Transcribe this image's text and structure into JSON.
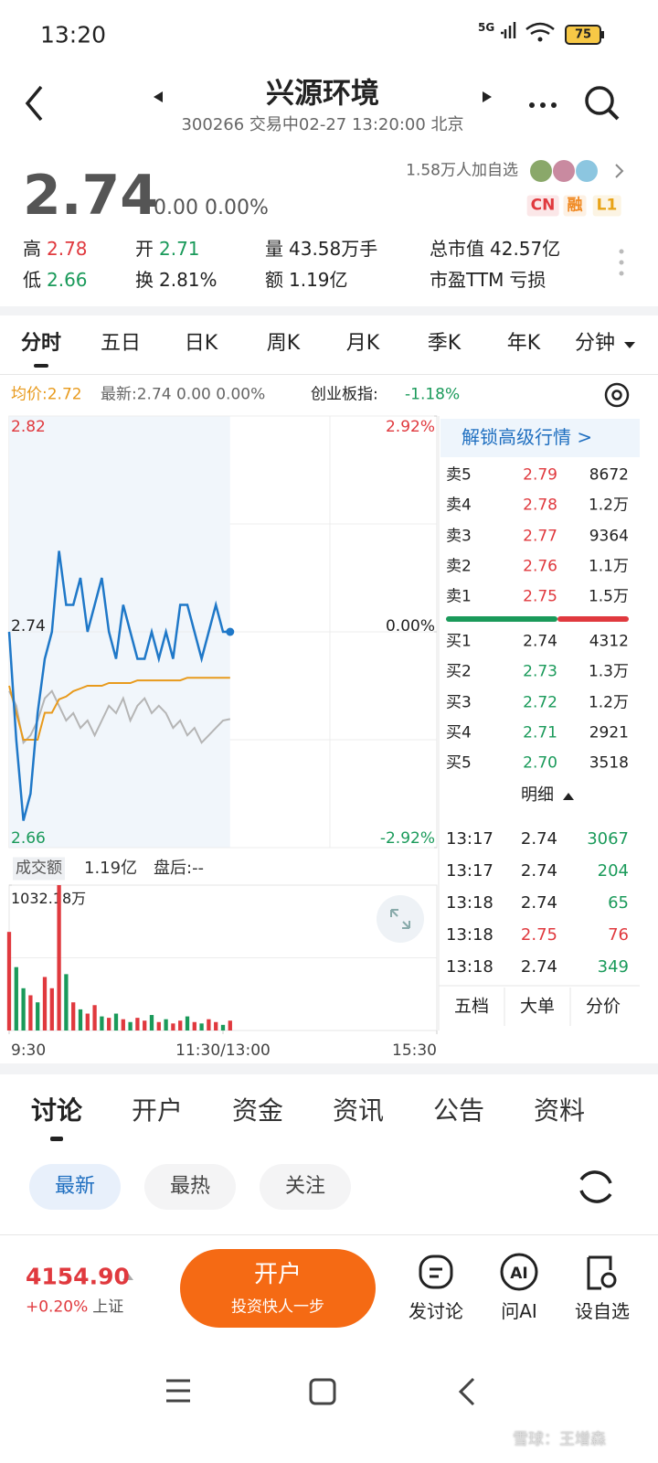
{
  "status_bar": {
    "time": "13:20",
    "network": "5G",
    "battery": "75"
  },
  "header": {
    "title": "兴源环境",
    "subtitle": "300266 交易中02-27 13:20:00 北京"
  },
  "quote": {
    "price": "2.74",
    "change": "0.00 0.00%",
    "followers": "1.58万人加自选",
    "badges": [
      {
        "text": "CN",
        "color": "#e0393e"
      },
      {
        "text": "融",
        "color": "#f08a24"
      },
      {
        "text": "L1",
        "color": "#e8a317"
      }
    ],
    "stats": [
      {
        "label": "高",
        "value": "2.78",
        "color": "#e0393e"
      },
      {
        "label": "开",
        "value": "2.71",
        "color": "#1a9a5a"
      },
      {
        "label": "量",
        "value": "43.58万手",
        "color": "#222"
      },
      {
        "label": "总市值",
        "value": "42.57亿",
        "color": "#222"
      },
      {
        "label": "低",
        "value": "2.66",
        "color": "#1a9a5a"
      },
      {
        "label": "换",
        "value": "2.81%",
        "color": "#222"
      },
      {
        "label": "额",
        "value": "1.19亿",
        "color": "#222"
      },
      {
        "label": "市盈TTM",
        "value": "亏损",
        "color": "#222"
      }
    ]
  },
  "chart_tabs": [
    "分时",
    "五日",
    "日K",
    "周K",
    "月K",
    "季K",
    "年K",
    "分钟"
  ],
  "chart_info": {
    "avg": "均价:2.72",
    "latest": "最新:2.74  0.00  0.00%",
    "index_label": "创业板指:",
    "index_change": "-1.18%"
  },
  "chart_data": [
    {
      "type": "line",
      "x": [
        0,
        4,
        8,
        12,
        16,
        20,
        24,
        28,
        32,
        36,
        40,
        44,
        48,
        52,
        56,
        60,
        64,
        68,
        72,
        76,
        80,
        84,
        88,
        92,
        96,
        100,
        104,
        108,
        112,
        116,
        120,
        124
      ],
      "xlim": [
        0,
        240
      ],
      "xticks": [
        {
          "value": 0,
          "label": "9:30"
        },
        {
          "value": 120,
          "label": "11:30/13:00"
        },
        {
          "value": 240,
          "label": "15:30"
        }
      ],
      "ylim": [
        2.66,
        2.82
      ],
      "yticks": [
        2.66,
        2.74,
        2.82
      ],
      "y2lim": [
        -2.92,
        2.92
      ],
      "y2ticks": [
        {
          "value": -2.92,
          "label": "-2.92%"
        },
        {
          "value": 0,
          "label": "0.00%"
        },
        {
          "value": 2.92,
          "label": "2.92%"
        }
      ],
      "series": [
        {
          "color": "#e89a1c",
          "values": [
            2.72,
            2.71,
            2.7,
            2.7,
            2.7,
            2.71,
            2.71,
            2.715,
            2.716,
            2.718,
            2.719,
            2.72,
            2.72,
            2.72,
            2.721,
            2.721,
            2.721,
            2.721,
            2.722,
            2.722,
            2.722,
            2.722,
            2.722,
            2.722,
            2.722,
            2.723,
            2.723,
            2.723,
            2.723,
            2.723,
            2.723,
            2.723
          ]
        },
        {
          "color": "#1f78c8",
          "values": [
            2.74,
            2.7,
            2.67,
            2.68,
            2.71,
            2.73,
            2.74,
            2.77,
            2.75,
            2.75,
            2.76,
            2.74,
            2.75,
            2.76,
            2.74,
            2.73,
            2.75,
            2.74,
            2.73,
            2.73,
            2.74,
            2.73,
            2.74,
            2.73,
            2.75,
            2.75,
            2.74,
            2.73,
            2.74,
            2.75,
            2.74,
            2.74
          ]
        },
        {
          "color": "#b5b5b5",
          "axis": "y2",
          "values": [
            -0.8,
            -1.0,
            -1.5,
            -1.4,
            -1.2,
            -0.9,
            -0.8,
            -1.0,
            -1.2,
            -1.1,
            -1.3,
            -1.2,
            -1.4,
            -1.2,
            -1.0,
            -1.1,
            -0.9,
            -1.2,
            -1.0,
            -0.9,
            -1.1,
            -1.0,
            -1.1,
            -1.3,
            -1.2,
            -1.4,
            -1.3,
            -1.5,
            -1.4,
            -1.3,
            -1.2,
            -1.18
          ]
        }
      ]
    },
    {
      "type": "bar",
      "title": "成交额",
      "total": "1.19亿",
      "after_hours": "盘后:--",
      "x": [
        0,
        4,
        8,
        12,
        16,
        20,
        24,
        28,
        32,
        36,
        40,
        44,
        48,
        52,
        56,
        60,
        64,
        68,
        72,
        76,
        80,
        84,
        88,
        92,
        96,
        100,
        104,
        108,
        112,
        116,
        120,
        124
      ],
      "xlim": [
        0,
        240
      ],
      "ylim": [
        0,
        1032.18
      ],
      "yticks": [
        {
          "value": 1032.18,
          "label": "1032.18万"
        }
      ],
      "values": [
        700,
        450,
        300,
        250,
        200,
        380,
        300,
        1032.18,
        400,
        200,
        150,
        120,
        180,
        100,
        90,
        120,
        80,
        60,
        90,
        70,
        110,
        60,
        80,
        50,
        70,
        100,
        60,
        50,
        80,
        60,
        40,
        70
      ],
      "colors": [
        "#e0393e",
        "#1a9a5a",
        "#1a9a5a",
        "#e0393e",
        "#1a9a5a",
        "#e0393e",
        "#e0393e",
        "#e0393e",
        "#1a9a5a",
        "#e0393e",
        "#1a9a5a",
        "#e0393e",
        "#e0393e",
        "#1a9a5a",
        "#e0393e",
        "#1a9a5a",
        "#e0393e",
        "#1a9a5a",
        "#e0393e",
        "#e0393e",
        "#1a9a5a",
        "#e0393e",
        "#1a9a5a",
        "#e0393e",
        "#e0393e",
        "#1a9a5a",
        "#e0393e",
        "#1a9a5a",
        "#e0393e",
        "#e0393e",
        "#1a9a5a",
        "#e0393e"
      ]
    }
  ],
  "order_book": {
    "unlock": "解锁高级行情 >",
    "sells": [
      [
        "卖5",
        "2.79",
        "8672"
      ],
      [
        "卖4",
        "2.78",
        "1.2万"
      ],
      [
        "卖3",
        "2.77",
        "9364"
      ],
      [
        "卖2",
        "2.76",
        "1.1万"
      ],
      [
        "卖1",
        "2.75",
        "1.5万"
      ]
    ],
    "buys": [
      [
        "买1",
        "2.74",
        "4312"
      ],
      [
        "买2",
        "2.73",
        "1.3万"
      ],
      [
        "买3",
        "2.72",
        "1.2万"
      ],
      [
        "买4",
        "2.71",
        "2921"
      ],
      [
        "买5",
        "2.70",
        "3518"
      ]
    ],
    "detail_title": "明细",
    "trades": [
      {
        "time": "13:17",
        "price": "2.74",
        "volume": "3067",
        "color": "#1a9a5a"
      },
      {
        "time": "13:17",
        "price": "2.74",
        "volume": "204",
        "color": "#1a9a5a"
      },
      {
        "time": "13:18",
        "price": "2.74",
        "volume": "65",
        "color": "#1a9a5a"
      },
      {
        "time": "13:18",
        "price": "2.75",
        "volume": "76",
        "color": "#e0393e"
      },
      {
        "time": "13:18",
        "price": "2.74",
        "volume": "349",
        "color": "#1a9a5a"
      }
    ],
    "tabs": [
      "五档",
      "大单",
      "分价"
    ]
  },
  "content_tabs": [
    "讨论",
    "开户",
    "资金",
    "资讯",
    "公告",
    "资料"
  ],
  "filters": [
    "最新",
    "最热",
    "关注"
  ],
  "bottom_bar": {
    "index_value": "4154.90",
    "index_change": "+0.20%",
    "index_name": "上证",
    "button_title": "开户",
    "button_subtitle": "投资快人一步",
    "actions": [
      "发讨论",
      "问AI",
      "设自选"
    ]
  },
  "watermark": "雪球：王增森"
}
